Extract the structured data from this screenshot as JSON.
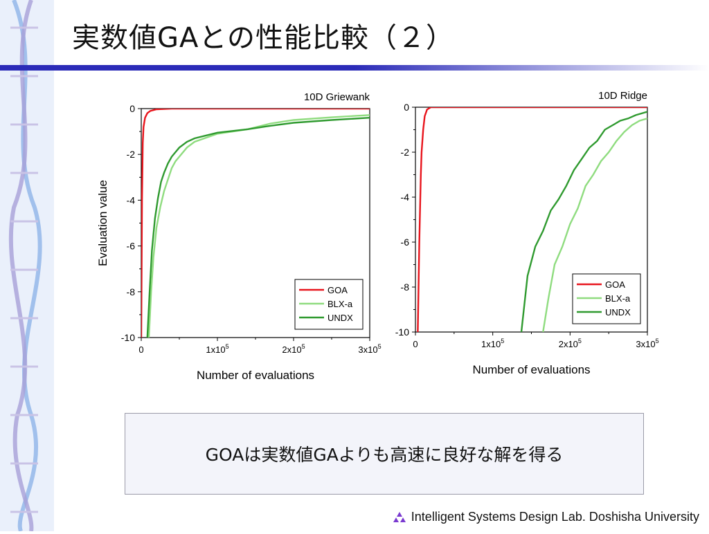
{
  "title": "実数値GAとの性能比較（２）",
  "summary": "GOAは実数値GAよりも高速に良好な解を得る",
  "footer": {
    "text": "Intelligent Systems Design Lab. Doshisha University",
    "logo_icon": "tri-triangle-logo-icon"
  },
  "colors": {
    "accent": "#2b2bb8",
    "GOA": "#e8141c",
    "BLX-a": "#8fdc7f",
    "UNDX": "#2f9a2f"
  },
  "chart_data": [
    {
      "type": "line",
      "title": "10D Griewank",
      "xlabel": "Number of evaluations",
      "ylabel": "Evaluation value",
      "xlim": [
        0,
        300000
      ],
      "ylim": [
        -10,
        0
      ],
      "x_ticks": [
        {
          "value": 0,
          "base": "0",
          "exp": ""
        },
        {
          "value": 100000,
          "base": "1x10",
          "exp": "5"
        },
        {
          "value": 200000,
          "base": "2x10",
          "exp": "5"
        },
        {
          "value": 300000,
          "base": "3x10",
          "exp": "5"
        }
      ],
      "y_ticks": [
        0,
        -2,
        -4,
        -6,
        -8,
        -10
      ],
      "legend_position": "bottom-right",
      "series": [
        {
          "name": "GOA",
          "x": [
            0,
            1000,
            2000,
            3000,
            5000,
            8000,
            12000,
            20000,
            40000,
            300000
          ],
          "y": [
            -10,
            -4,
            -1.5,
            -0.8,
            -0.4,
            -0.2,
            -0.1,
            -0.03,
            0,
            0
          ]
        },
        {
          "name": "BLX-a",
          "x": [
            10000,
            13000,
            16000,
            20000,
            25000,
            30000,
            35000,
            40000,
            45000,
            50000,
            60000,
            70000,
            100000,
            140000,
            170000,
            200000,
            250000,
            300000
          ],
          "y": [
            -10,
            -8,
            -6.5,
            -5.2,
            -4.3,
            -3.6,
            -3.1,
            -2.6,
            -2.3,
            -2.1,
            -1.7,
            -1.45,
            -1.1,
            -0.9,
            -0.65,
            -0.5,
            -0.38,
            -0.28
          ]
        },
        {
          "name": "UNDX",
          "x": [
            8000,
            11000,
            14000,
            18000,
            22000,
            26000,
            30000,
            35000,
            40000,
            45000,
            50000,
            60000,
            70000,
            100000,
            140000,
            170000,
            200000,
            250000,
            300000
          ],
          "y": [
            -10,
            -8,
            -6.2,
            -4.8,
            -3.9,
            -3.2,
            -2.8,
            -2.4,
            -2.1,
            -1.9,
            -1.7,
            -1.45,
            -1.3,
            -1.05,
            -0.9,
            -0.75,
            -0.62,
            -0.5,
            -0.4
          ]
        }
      ]
    },
    {
      "type": "line",
      "title": "10D Ridge",
      "xlabel": "Number of evaluations",
      "ylabel": "",
      "xlim": [
        0,
        300000
      ],
      "ylim": [
        -10,
        0
      ],
      "x_ticks": [
        {
          "value": 0,
          "base": "0",
          "exp": ""
        },
        {
          "value": 100000,
          "base": "1x10",
          "exp": "5"
        },
        {
          "value": 200000,
          "base": "2x10",
          "exp": "5"
        },
        {
          "value": 300000,
          "base": "3x10",
          "exp": "5"
        }
      ],
      "y_ticks": [
        0,
        -2,
        -4,
        -6,
        -8,
        -10
      ],
      "legend_position": "bottom-right",
      "series": [
        {
          "name": "GOA",
          "x": [
            3000,
            4000,
            5000,
            6000,
            7000,
            8000,
            10000,
            12000,
            15000,
            20000,
            300000
          ],
          "y": [
            -10,
            -8,
            -6,
            -4.5,
            -3,
            -2,
            -1,
            -0.4,
            -0.1,
            0,
            0
          ]
        },
        {
          "name": "BLX-a",
          "x": [
            165000,
            172000,
            180000,
            190000,
            200000,
            210000,
            220000,
            230000,
            240000,
            250000,
            260000,
            270000,
            280000,
            290000,
            300000
          ],
          "y": [
            -10,
            -8.5,
            -7,
            -6.2,
            -5.2,
            -4.5,
            -3.5,
            -3,
            -2.4,
            -2,
            -1.5,
            -1.1,
            -0.8,
            -0.6,
            -0.5
          ]
        },
        {
          "name": "UNDX",
          "x": [
            137000,
            145000,
            155000,
            165000,
            175000,
            185000,
            195000,
            205000,
            215000,
            225000,
            235000,
            245000,
            255000,
            265000,
            275000,
            285000,
            300000
          ],
          "y": [
            -10,
            -7.5,
            -6.2,
            -5.5,
            -4.6,
            -4.1,
            -3.5,
            -2.8,
            -2.3,
            -1.8,
            -1.5,
            -1.0,
            -0.8,
            -0.6,
            -0.5,
            -0.35,
            -0.2
          ]
        }
      ]
    }
  ]
}
